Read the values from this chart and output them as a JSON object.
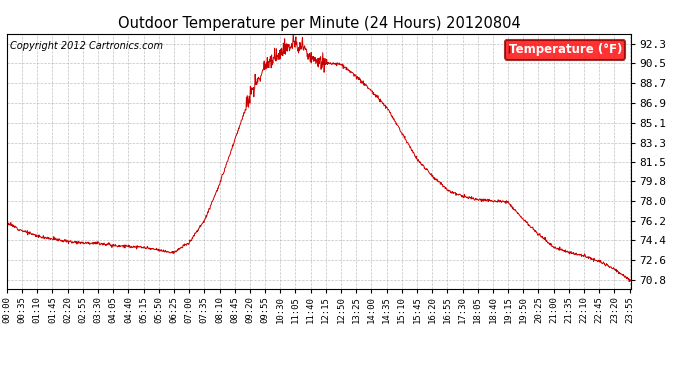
{
  "title": "Outdoor Temperature per Minute (24 Hours) 20120804",
  "copyright_text": "Copyright 2012 Cartronics.com",
  "legend_label": "Temperature (°F)",
  "line_color": "#cc0000",
  "background_color": "#ffffff",
  "grid_color": "#999999",
  "yticks": [
    70.8,
    72.6,
    74.4,
    76.2,
    78.0,
    79.8,
    81.5,
    83.3,
    85.1,
    86.9,
    88.7,
    90.5,
    92.3
  ],
  "ylim": [
    70.0,
    93.2
  ],
  "xtick_labels": [
    "00:00",
    "00:35",
    "01:10",
    "01:45",
    "02:20",
    "02:55",
    "03:30",
    "04:05",
    "04:40",
    "05:15",
    "05:50",
    "06:25",
    "07:00",
    "07:35",
    "08:10",
    "08:45",
    "09:20",
    "09:55",
    "10:30",
    "11:05",
    "11:40",
    "12:15",
    "12:50",
    "13:25",
    "14:00",
    "14:35",
    "15:10",
    "15:45",
    "16:20",
    "16:55",
    "17:30",
    "18:05",
    "18:40",
    "19:15",
    "19:50",
    "20:25",
    "21:00",
    "21:35",
    "22:10",
    "22:45",
    "23:20",
    "23:55"
  ],
  "num_minutes": 1440,
  "temperature_profile": {
    "00:00": 76.0,
    "00:35": 75.3,
    "01:10": 74.8,
    "01:45": 74.55,
    "02:20": 74.3,
    "02:55": 74.2,
    "03:30": 74.15,
    "04:05": 73.95,
    "04:40": 73.85,
    "05:15": 73.75,
    "05:50": 73.5,
    "06:25": 73.3,
    "07:00": 74.2,
    "07:35": 76.2,
    "08:10": 79.5,
    "08:45": 83.5,
    "09:20": 87.5,
    "09:55": 90.3,
    "10:30": 91.5,
    "11:05": 92.3,
    "11:15": 91.8,
    "11:25": 92.1,
    "11:40": 91.0,
    "12:00": 90.7,
    "12:15": 90.6,
    "12:50": 90.4,
    "13:25": 89.3,
    "14:00": 88.0,
    "14:35": 86.5,
    "15:10": 84.2,
    "15:45": 81.8,
    "16:20": 80.3,
    "16:55": 79.0,
    "17:30": 78.4,
    "18:05": 78.1,
    "18:40": 78.0,
    "19:15": 77.9,
    "19:50": 76.3,
    "20:25": 75.0,
    "21:00": 73.8,
    "21:35": 73.3,
    "22:10": 73.0,
    "22:45": 72.5,
    "23:20": 71.8,
    "23:55": 70.8
  }
}
